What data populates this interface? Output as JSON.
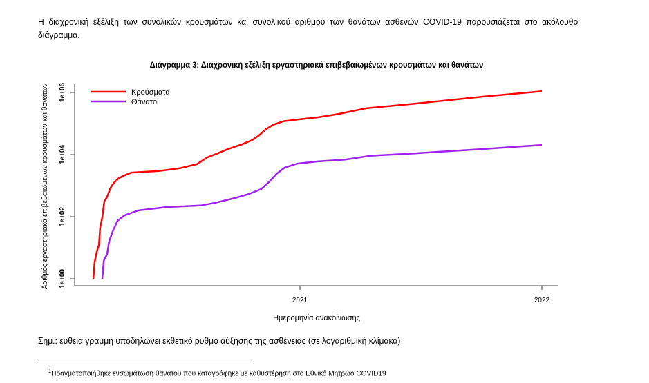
{
  "intro_text": "Η διαχρονική εξέλιξη των συνολικών κρουσμάτων και συνολικού αριθμού των θανάτων ασθενών COVID-19 παρουσιάζεται στο ακόλουθο διάγραμμα.",
  "chart_data": {
    "type": "line",
    "title": "Διάγραμμα 3: Διαχρονική εξέλιξη εργαστηριακά επιβεβαιωμένων κρουσμάτων και θανάτων",
    "xlabel": "Ημερομηνία ανακοίνωσης",
    "ylabel": "Αριθμός εργαστηριακά επιβεβαιωμένων κρουσμάτων και θανάτων",
    "y_scale": "log10",
    "xlim": [
      2020.0,
      2022.07
    ],
    "ylim_log10": [
      -0.1,
      6.3
    ],
    "x_ticks": [
      {
        "value": 2021,
        "label": "2021"
      },
      {
        "value": 2022,
        "label": "2022"
      }
    ],
    "y_ticks": [
      {
        "log10": 0,
        "label": "1e+00"
      },
      {
        "log10": 2,
        "label": "1e+02"
      },
      {
        "log10": 4,
        "label": "1e+04"
      },
      {
        "log10": 6,
        "label": "1e+06"
      }
    ],
    "legend_position": "top-left",
    "series": [
      {
        "name": "Κρούσματα",
        "color": "#ff0000",
        "x": [
          2020.146,
          2020.151,
          2020.16,
          2020.169,
          2020.174,
          2020.183,
          2020.191,
          2020.203,
          2020.217,
          2020.231,
          2020.251,
          2020.274,
          2020.303,
          2020.417,
          2020.503,
          2020.574,
          2020.617,
          2020.66,
          2020.703,
          2020.76,
          2020.803,
          2020.831,
          2020.86,
          2020.889,
          2020.931,
          2020.989,
          2021.074,
          2021.16,
          2021.274,
          2021.474,
          2021.76,
          2022.0
        ],
        "log10_y": [
          0,
          0.53,
          0.87,
          1.09,
          1.64,
          1.98,
          2.49,
          2.64,
          2.93,
          3.09,
          3.24,
          3.33,
          3.42,
          3.47,
          3.56,
          3.69,
          3.91,
          4.04,
          4.18,
          4.33,
          4.47,
          4.62,
          4.82,
          4.96,
          5.07,
          5.13,
          5.2,
          5.31,
          5.49,
          5.64,
          5.87,
          6.04
        ]
      },
      {
        "name": "Θάνατοι",
        "color": "#a020f0",
        "x": [
          2020.183,
          2020.189,
          2020.203,
          2020.211,
          2020.226,
          2020.246,
          2020.274,
          2020.331,
          2020.446,
          2020.589,
          2020.646,
          2020.731,
          2020.789,
          2020.84,
          2020.874,
          2020.903,
          2020.937,
          2020.989,
          2021.074,
          2021.189,
          2021.289,
          2021.474,
          2021.76,
          2022.0
        ],
        "log10_y": [
          0,
          0.58,
          0.8,
          1.2,
          1.53,
          1.87,
          2.04,
          2.2,
          2.31,
          2.36,
          2.44,
          2.6,
          2.73,
          2.89,
          3.13,
          3.38,
          3.58,
          3.71,
          3.78,
          3.84,
          3.96,
          4.04,
          4.18,
          4.31
        ]
      }
    ]
  },
  "note_text": "Σημ.: ευθεία γραμμή υποδηλώνει εκθετικό ρυθμό αύξησης της ασθένειας (σε λογαριθμική κλίμακα)",
  "footnote": {
    "marker": "1",
    "text": "Πραγματοποιήθηκε ενσωμάτωση θανάτου που καταγράφηκε με καθυστέρηση στο Εθνικό Μητρώο COVID19"
  }
}
